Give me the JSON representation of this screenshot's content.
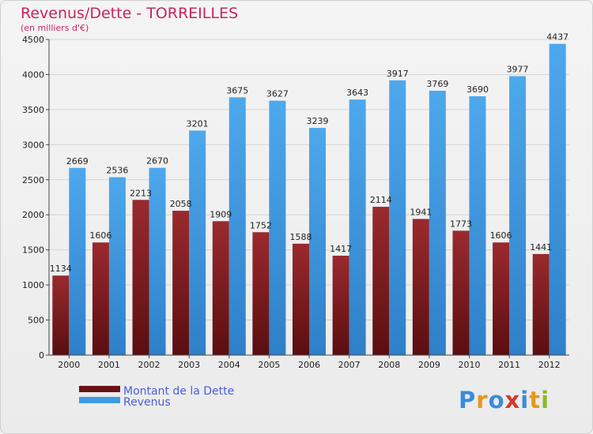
{
  "chart_data": {
    "type": "bar",
    "title": "Revenus/Dette - TORREILLES",
    "subtitle": "(en milliers d'€)",
    "xlabel": "",
    "ylabel": "",
    "ylim": [
      0,
      4500
    ],
    "yticks": [
      0,
      500,
      1000,
      1500,
      2000,
      2500,
      3000,
      3500,
      4000,
      4500
    ],
    "grid": true,
    "legend_position": "bottom-left",
    "categories": [
      "2000",
      "2001",
      "2002",
      "2003",
      "2004",
      "2005",
      "2006",
      "2007",
      "2008",
      "2009",
      "2010",
      "2011",
      "2012"
    ],
    "series": [
      {
        "name": "Montant de la Dette",
        "color": "#7a1a1e",
        "values": [
          1134,
          1606,
          2213,
          2058,
          1909,
          1752,
          1588,
          1417,
          2114,
          1941,
          1773,
          1606,
          1441
        ],
        "labels": [
          "1134",
          "1606",
          "2213",
          "2058",
          "1909",
          "1752",
          "1588",
          "1417",
          "2114",
          "1941",
          "1773",
          "1606",
          "1441"
        ]
      },
      {
        "name": "Revenus",
        "color": "#3f9be3",
        "values": [
          2669,
          2536,
          2670,
          3201,
          3675,
          3627,
          3239,
          3643,
          3917,
          3769,
          3690,
          3977,
          4437
        ],
        "labels": [
          "2669",
          "2536",
          "2670",
          "3201",
          "3675",
          "3627",
          "3239",
          "3643",
          "3917",
          "3769",
          "3690",
          "3977",
          "4437"
        ]
      }
    ]
  },
  "logo": {
    "letters": [
      "P",
      "r",
      "o",
      "x",
      "i",
      "t",
      "i"
    ],
    "colors": [
      "#3a8be0",
      "#e39a1a",
      "#3a8be0",
      "#d23a2a",
      "#3a8be0",
      "#e39a1a",
      "#8bbb24"
    ]
  }
}
